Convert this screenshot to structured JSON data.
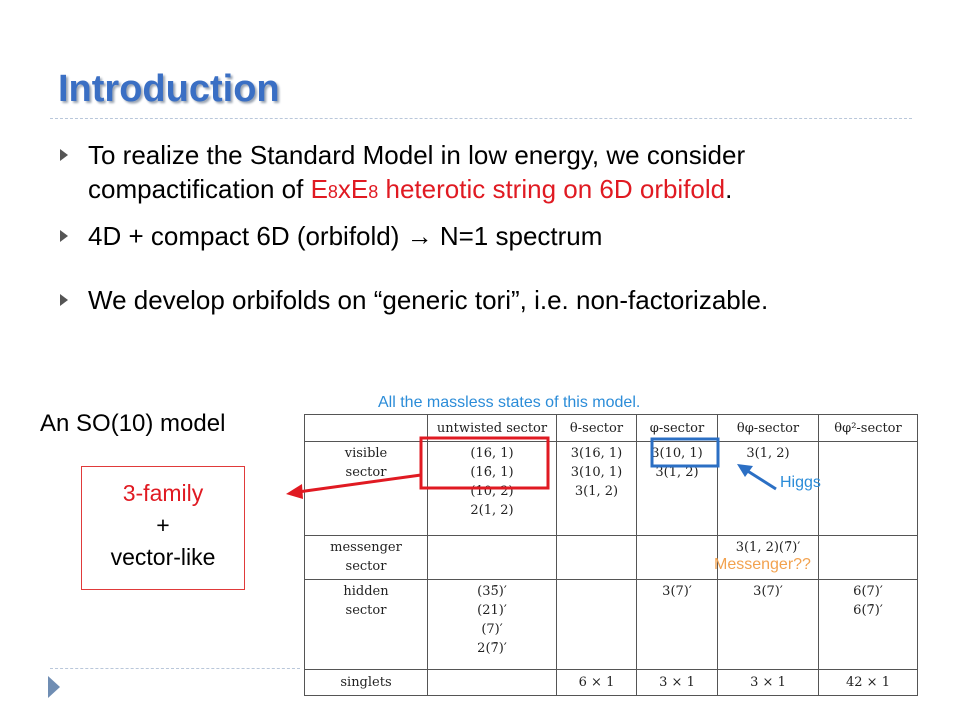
{
  "slide": {
    "title": "Introduction",
    "bullets": [
      {
        "line1": "To realize the Standard Model in low energy, we consider",
        "line2_pre": "compactification of ",
        "e1": "E",
        "e1_sub": "8",
        "x": "x",
        "e2": "E",
        "e2_sub": "8",
        "line2_red": " heterotic string on 6D orbifold",
        "line2_post": "."
      },
      {
        "text": "4D + compact 6D (orbifold) → N=1 spectrum"
      },
      {
        "text": "We develop orbifolds on “generic tori”, i.e. non-factorizable."
      }
    ],
    "massless_caption": "All the massless states of this model.",
    "model_label": "An SO(10) model",
    "family_box": {
      "line1": "3-family",
      "line2": "+",
      "line3": "vector-like"
    },
    "higgs_label": "Higgs",
    "messenger_label": "Messenger??",
    "colors": {
      "title": "#3a6fc4",
      "red": "#e01a22",
      "blue": "#2b8cd8",
      "orange": "#f2a24f"
    }
  },
  "table": {
    "headers": [
      "untwisted sector",
      "θ-sector",
      "φ-sector",
      "θφ-sector",
      "θφ²-sector"
    ],
    "rows": [
      {
        "label": [
          "visible",
          "sector"
        ],
        "cells": [
          [
            "(16, 1)",
            "(16̄, 1)",
            "(10, 2)",
            "2(1, 2)"
          ],
          [
            "3(16, 1)",
            "3(10, 1)",
            "3(1, 2)"
          ],
          [
            "3(10, 1)",
            "3(1, 2)"
          ],
          [
            "3(1, 2)"
          ],
          []
        ]
      },
      {
        "label": [
          "messenger",
          "sector"
        ],
        "cells": [
          [],
          [],
          [],
          [
            "3(1, 2)(7̄)′"
          ],
          []
        ]
      },
      {
        "label": [
          "hidden",
          "sector"
        ],
        "cells": [
          [
            "(35̄)′",
            "(21)′",
            "(7)′",
            "2(7̄)′"
          ],
          [],
          [
            "3(7)′"
          ],
          [
            "3(7)′"
          ],
          [
            "6(7)′",
            "6(7̄)′"
          ]
        ]
      },
      {
        "label": [
          "singlets"
        ],
        "cells": [
          [],
          [
            "6 × 1"
          ],
          [
            "3 × 1"
          ],
          [
            "3 × 1"
          ],
          [
            "42 × 1"
          ]
        ]
      }
    ]
  }
}
